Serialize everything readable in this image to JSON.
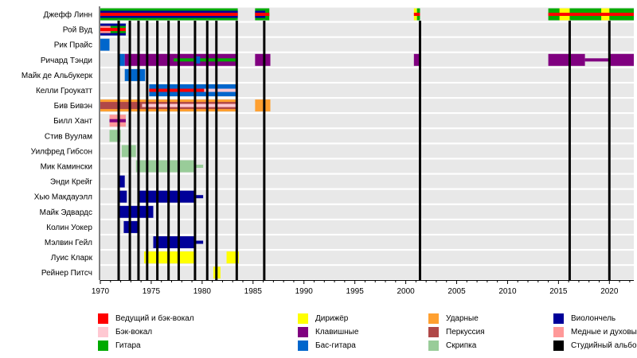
{
  "chart_data": {
    "type": "timeline",
    "title": "",
    "x_range": [
      1970,
      2022.4
    ],
    "x_ticks": [
      1970,
      1975,
      1980,
      1985,
      1990,
      1995,
      2000,
      2005,
      2010,
      2015,
      2020
    ],
    "grid": false,
    "legend_position": "bottom",
    "colors": {
      "lead_vocals": "#ff0000",
      "backing_vocals": "#ffc8d2",
      "guitar": "#00aa00",
      "conductor": "#ffff00",
      "keyboards": "#800080",
      "bass": "#0066cc",
      "drums": "#ffa030",
      "percussion": "#b04848",
      "violin": "#99cc99",
      "cello": "#000099",
      "brass": "#ff9999",
      "studio_album": "#000000"
    },
    "legend": [
      {
        "key": "lead_vocals",
        "label": "Ведущий и бэк-вокал"
      },
      {
        "key": "backing_vocals",
        "label": "Бэк-вокал"
      },
      {
        "key": "guitar",
        "label": "Гитара"
      },
      {
        "key": "conductor",
        "label": "Дирижёр"
      },
      {
        "key": "keyboards",
        "label": "Клавишные"
      },
      {
        "key": "bass",
        "label": "Бас-гитара"
      },
      {
        "key": "drums",
        "label": "Ударные"
      },
      {
        "key": "percussion",
        "label": "Перкуссия"
      },
      {
        "key": "violin",
        "label": "Скрипка"
      },
      {
        "key": "cello",
        "label": "Виолончель"
      },
      {
        "key": "brass",
        "label": "Медные и духовые"
      },
      {
        "key": "studio_album",
        "label": "Студийный альбом"
      }
    ],
    "studio_albums": [
      1971.8,
      1972.9,
      1973.75,
      1974.6,
      1975.6,
      1976.7,
      1977.7,
      1979.3,
      1980.5,
      1981.4,
      1983.4,
      1986.1,
      2001.4,
      2016.1,
      2020.0
    ],
    "members": [
      {
        "name": "Джефф Линн",
        "bars": [
          {
            "role": "guitar",
            "start": 1970,
            "end": 1983.5,
            "layer": "full"
          },
          {
            "role": "cello",
            "start": 1970,
            "end": 1983.5,
            "layer": "mid"
          },
          {
            "role": "lead_vocals",
            "start": 1970,
            "end": 1983.5,
            "layer": "thin"
          },
          {
            "role": "guitar",
            "start": 1985.2,
            "end": 1986.6,
            "layer": "full"
          },
          {
            "role": "cello",
            "start": 1985.2,
            "end": 1986.2,
            "layer": "mid"
          },
          {
            "role": "lead_vocals",
            "start": 1985.2,
            "end": 1986.6,
            "layer": "thin"
          },
          {
            "role": "conductor",
            "start": 2000.8,
            "end": 2001.1,
            "layer": "full"
          },
          {
            "role": "guitar",
            "start": 2001.1,
            "end": 2001.4,
            "layer": "full"
          },
          {
            "role": "lead_vocals",
            "start": 2000.8,
            "end": 2001.4,
            "layer": "thin"
          },
          {
            "role": "guitar",
            "start": 2014,
            "end": 2022.4,
            "layer": "full"
          },
          {
            "role": "conductor",
            "start": 2015.1,
            "end": 2016.1,
            "layer": "full"
          },
          {
            "role": "conductor",
            "start": 2019.2,
            "end": 2020.0,
            "layer": "full"
          },
          {
            "role": "lead_vocals",
            "start": 2014,
            "end": 2022.4,
            "layer": "thin"
          }
        ]
      },
      {
        "name": "Рой Вуд",
        "bars": [
          {
            "role": "cello",
            "start": 1970,
            "end": 1972.5,
            "layer": "full"
          },
          {
            "role": "guitar",
            "start": 1970,
            "end": 1972.5,
            "layer": "mid"
          },
          {
            "role": "brass",
            "start": 1970,
            "end": 1971,
            "layer": "mid"
          },
          {
            "role": "lead_vocals",
            "start": 1970,
            "end": 1972.5,
            "layer": "thin"
          }
        ]
      },
      {
        "name": "Рик Прайс",
        "bars": [
          {
            "role": "bass",
            "start": 1970,
            "end": 1970.9,
            "layer": "full"
          }
        ]
      },
      {
        "name": "Ричард Тэнди",
        "bars": [
          {
            "role": "bass",
            "start": 1971.9,
            "end": 1972.4,
            "layer": "full"
          },
          {
            "role": "keyboards",
            "start": 1972.4,
            "end": 1983.5,
            "layer": "full"
          },
          {
            "role": "guitar",
            "start": 1977.2,
            "end": 1983.5,
            "layer": "thin"
          },
          {
            "role": "bass",
            "start": 1979.2,
            "end": 1979.8,
            "layer": "mid"
          },
          {
            "role": "keyboards",
            "start": 1985.2,
            "end": 1986.7,
            "layer": "full"
          },
          {
            "role": "keyboards",
            "start": 2000.8,
            "end": 2001.5,
            "layer": "full"
          },
          {
            "role": "keyboards",
            "start": 2014,
            "end": 2017.6,
            "layer": "full"
          },
          {
            "role": "keyboards",
            "start": 2017.6,
            "end": 2020.0,
            "layer": "thin"
          },
          {
            "role": "keyboards",
            "start": 2020.0,
            "end": 2022.4,
            "layer": "full"
          }
        ]
      },
      {
        "name": "Майк де Альбукерк",
        "bars": [
          {
            "role": "bass",
            "start": 1972.4,
            "end": 1974.4,
            "layer": "full"
          }
        ]
      },
      {
        "name": "Келли Гроукатт",
        "bars": [
          {
            "role": "bass",
            "start": 1974.8,
            "end": 1983.5,
            "layer": "full"
          },
          {
            "role": "backing_vocals",
            "start": 1974.8,
            "end": 1983.5,
            "layer": "thin"
          },
          {
            "role": "lead_vocals",
            "start": 1974.8,
            "end": 1980.2,
            "layer": "thin"
          }
        ]
      },
      {
        "name": "Бив Бивэн",
        "bars": [
          {
            "role": "drums",
            "start": 1970,
            "end": 1983.5,
            "layer": "full"
          },
          {
            "role": "percussion",
            "start": 1970,
            "end": 1983.5,
            "layer": "mid"
          },
          {
            "role": "backing_vocals",
            "start": 1974.1,
            "end": 1983.5,
            "layer": "thin"
          },
          {
            "role": "drums",
            "start": 1985.2,
            "end": 1986.7,
            "layer": "full"
          }
        ]
      },
      {
        "name": "Билл Хант",
        "bars": [
          {
            "role": "brass",
            "start": 1970.9,
            "end": 1972.5,
            "layer": "full"
          },
          {
            "role": "keyboards",
            "start": 1970.9,
            "end": 1972.5,
            "layer": "thin"
          }
        ]
      },
      {
        "name": "Стив Вуулам",
        "bars": [
          {
            "role": "violin",
            "start": 1970.9,
            "end": 1972,
            "layer": "full"
          }
        ]
      },
      {
        "name": "Уилфред Гибсон",
        "bars": [
          {
            "role": "violin",
            "start": 1972.1,
            "end": 1973.5,
            "layer": "full"
          }
        ]
      },
      {
        "name": "Мик Камински",
        "bars": [
          {
            "role": "violin",
            "start": 1973.5,
            "end": 1979.2,
            "layer": "full"
          },
          {
            "role": "violin",
            "start": 1979.2,
            "end": 1980.1,
            "layer": "thin"
          }
        ]
      },
      {
        "name": "Энди Крейг",
        "bars": [
          {
            "role": "cello",
            "start": 1971.9,
            "end": 1972.4,
            "layer": "full"
          }
        ]
      },
      {
        "name": "Хью Макдауэлл",
        "bars": [
          {
            "role": "cello",
            "start": 1971.9,
            "end": 1972.6,
            "layer": "full"
          },
          {
            "role": "cello",
            "start": 1973.7,
            "end": 1979.2,
            "layer": "full"
          },
          {
            "role": "cello",
            "start": 1979.2,
            "end": 1980.1,
            "layer": "thin"
          }
        ]
      },
      {
        "name": "Майк Эдвардс",
        "bars": [
          {
            "role": "cello",
            "start": 1971.9,
            "end": 1975.2,
            "layer": "full"
          }
        ]
      },
      {
        "name": "Колин Уокер",
        "bars": [
          {
            "role": "cello",
            "start": 1972.3,
            "end": 1973.7,
            "layer": "full"
          }
        ]
      },
      {
        "name": "Мэлвин Гейл",
        "bars": [
          {
            "role": "cello",
            "start": 1975.2,
            "end": 1979.2,
            "layer": "full"
          },
          {
            "role": "cello",
            "start": 1979.2,
            "end": 1980.1,
            "layer": "thin"
          }
        ]
      },
      {
        "name": "Луис Кларк",
        "bars": [
          {
            "role": "conductor",
            "start": 1974.3,
            "end": 1979.2,
            "layer": "full"
          },
          {
            "role": "conductor",
            "start": 1982.4,
            "end": 1983.6,
            "layer": "full"
          }
        ]
      },
      {
        "name": "Рейнер Питсч",
        "bars": [
          {
            "role": "conductor",
            "start": 1981.1,
            "end": 1981.8,
            "layer": "full"
          }
        ]
      }
    ]
  }
}
